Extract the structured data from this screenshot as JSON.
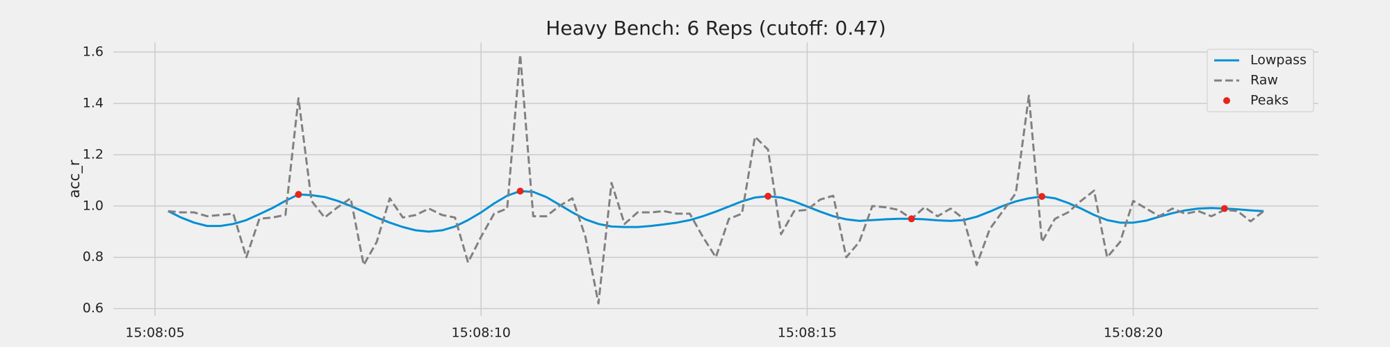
{
  "chart_data": {
    "type": "line",
    "title": "Heavy Bench: 6 Reps (cutoff: 0.47)",
    "y_label": "acc_r",
    "x": [
      5.2,
      5.4,
      5.6,
      5.8,
      6.0,
      6.2,
      6.4,
      6.6,
      6.8,
      7.0,
      7.2,
      7.4,
      7.6,
      7.8,
      8.0,
      8.2,
      8.4,
      8.6,
      8.8,
      9.0,
      9.2,
      9.4,
      9.6,
      9.8,
      10.0,
      10.2,
      10.4,
      10.6,
      10.8,
      11.0,
      11.2,
      11.4,
      11.6,
      11.8,
      12.0,
      12.2,
      12.4,
      12.6,
      12.8,
      13.0,
      13.2,
      13.4,
      13.6,
      13.8,
      14.0,
      14.2,
      14.4,
      14.6,
      14.8,
      15.0,
      15.2,
      15.4,
      15.6,
      15.8,
      16.0,
      16.2,
      16.4,
      16.6,
      16.8,
      17.0,
      17.2,
      17.4,
      17.6,
      17.8,
      18.0,
      18.2,
      18.4,
      18.6,
      18.8,
      19.0,
      19.2,
      19.4,
      19.6,
      19.8,
      20.0,
      20.2,
      20.4,
      20.6,
      20.8,
      21.0,
      21.2,
      21.4,
      21.6,
      21.8,
      22.0
    ],
    "series": [
      {
        "name": "Lowpass",
        "color": "#008fd5",
        "style": "solid",
        "values": [
          0.98,
          0.955,
          0.935,
          0.922,
          0.922,
          0.93,
          0.945,
          0.968,
          0.992,
          1.02,
          1.045,
          1.042,
          1.035,
          1.02,
          1.0,
          0.978,
          0.955,
          0.935,
          0.918,
          0.905,
          0.9,
          0.905,
          0.92,
          0.945,
          0.975,
          1.01,
          1.04,
          1.058,
          1.055,
          1.035,
          1.005,
          0.975,
          0.948,
          0.93,
          0.92,
          0.918,
          0.918,
          0.922,
          0.928,
          0.935,
          0.945,
          0.96,
          0.978,
          0.998,
          1.018,
          1.033,
          1.038,
          1.033,
          1.018,
          0.998,
          0.978,
          0.96,
          0.948,
          0.942,
          0.945,
          0.948,
          0.95,
          0.95,
          0.948,
          0.944,
          0.942,
          0.945,
          0.958,
          0.978,
          1.0,
          1.018,
          1.03,
          1.037,
          1.03,
          1.012,
          0.99,
          0.965,
          0.945,
          0.935,
          0.935,
          0.943,
          0.958,
          0.972,
          0.983,
          0.99,
          0.992,
          0.99,
          0.987,
          0.983,
          0.98
        ]
      },
      {
        "name": "Raw",
        "color": "#808080",
        "style": "dashed",
        "values": [
          0.98,
          0.975,
          0.975,
          0.96,
          0.965,
          0.97,
          0.8,
          0.95,
          0.955,
          0.965,
          1.42,
          1.02,
          0.955,
          0.995,
          1.03,
          0.77,
          0.86,
          1.03,
          0.955,
          0.965,
          0.99,
          0.965,
          0.955,
          0.78,
          0.88,
          0.97,
          0.99,
          1.59,
          0.96,
          0.96,
          1.0,
          1.03,
          0.88,
          0.62,
          1.09,
          0.93,
          0.975,
          0.975,
          0.98,
          0.97,
          0.97,
          0.88,
          0.8,
          0.95,
          0.97,
          1.27,
          1.22,
          0.89,
          0.98,
          0.985,
          1.025,
          1.04,
          0.8,
          0.86,
          1.0,
          0.995,
          0.985,
          0.95,
          0.995,
          0.96,
          0.99,
          0.95,
          0.77,
          0.91,
          0.98,
          1.05,
          1.43,
          0.86,
          0.95,
          0.975,
          1.02,
          1.06,
          0.8,
          0.86,
          1.02,
          0.99,
          0.96,
          0.99,
          0.97,
          0.98,
          0.96,
          0.985,
          0.98,
          0.94,
          0.98
        ]
      },
      {
        "name": "Peaks",
        "color": "#e5261b",
        "style": "marker",
        "x": [
          7.2,
          10.6,
          14.4,
          16.6,
          18.6,
          21.4
        ],
        "values": [
          1.045,
          1.058,
          1.038,
          0.95,
          1.037,
          0.99
        ]
      }
    ],
    "xlim": [
      4.36,
      22.84
    ],
    "ylim": [
      0.572,
      1.638
    ],
    "xticks": [
      {
        "value": 5,
        "label": "15:08:05"
      },
      {
        "value": 10,
        "label": "15:08:10"
      },
      {
        "value": 15,
        "label": "15:08:15"
      },
      {
        "value": 20,
        "label": "15:08:20"
      }
    ],
    "yticks": [
      0.6,
      0.8,
      {
        "value": 1.0,
        "label": "1.0"
      },
      1.2,
      1.4,
      1.6
    ],
    "grid": true,
    "legend": "upper-right"
  }
}
